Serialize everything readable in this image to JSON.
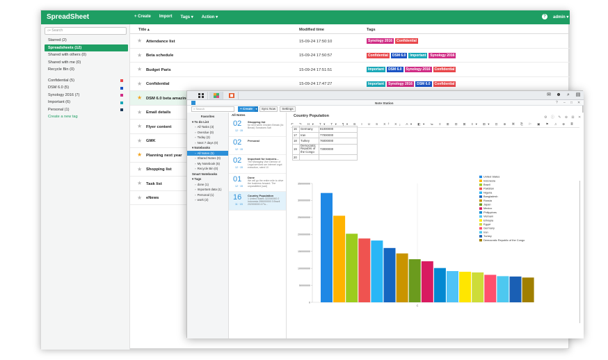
{
  "spreadsheet": {
    "logo": "SpreadSheet",
    "menu": [
      "+ Create",
      "Import",
      "Tags ▾",
      "Action ▾"
    ],
    "help": "?",
    "user": "admin ▾",
    "search_placeholder": "Search",
    "nav": [
      "Starred (2)",
      "Spreadsheets (12)",
      "Shared with others (0)",
      "Shared with me (0)",
      "Recycle Bin (0)"
    ],
    "tags": [
      {
        "label": "Confidential (5)",
        "color": "#e8474b"
      },
      {
        "label": "DSM 6.0 (5)",
        "color": "#1b53c4"
      },
      {
        "label": "Synology 2016 (7)",
        "color": "#d02c85"
      },
      {
        "label": "Important (6)",
        "color": "#1aa8b8"
      },
      {
        "label": "Personal (1)",
        "color": "#1e3a5a"
      }
    ],
    "create_tag": "Create a new tag",
    "columns": {
      "title": "Title ▴",
      "modified": "Modified time",
      "tags": "Tags"
    },
    "rows": [
      {
        "title": "Attendance list",
        "time": "15-09-24 17:50:10",
        "starred": false,
        "tags": [
          {
            "label": "Synology 2016",
            "color": "#d02c85"
          },
          {
            "label": "Confidential",
            "color": "#e8474b"
          }
        ]
      },
      {
        "title": "Beta schedule",
        "time": "15-09-24 17:50:57",
        "starred": false,
        "tags": [
          {
            "label": "Confidential",
            "color": "#e8474b"
          },
          {
            "label": "DSM 6.0",
            "color": "#1b53c4"
          },
          {
            "label": "Important",
            "color": "#1aa8b8"
          },
          {
            "label": "Synology 2016",
            "color": "#d02c85"
          }
        ]
      },
      {
        "title": "Budget Paris",
        "time": "15-09-24 17:51:51",
        "starred": false,
        "tags": [
          {
            "label": "Important",
            "color": "#1aa8b8"
          },
          {
            "label": "DSM 6.0",
            "color": "#1b53c4"
          },
          {
            "label": "Synology 2016",
            "color": "#d02c85"
          },
          {
            "label": "Confidential",
            "color": "#e8474b"
          }
        ]
      },
      {
        "title": "Confidential",
        "time": "15-09-24 17:47:27",
        "starred": false,
        "tags": [
          {
            "label": "Important",
            "color": "#1aa8b8"
          },
          {
            "label": "Synology 2016",
            "color": "#d02c85"
          },
          {
            "label": "DSM 6.0",
            "color": "#1b53c4"
          },
          {
            "label": "Confidential",
            "color": "#e8474b"
          }
        ]
      },
      {
        "title": "DSM 6.0 beta amazing",
        "time": "",
        "starred": true,
        "highlight": true,
        "tags": []
      },
      {
        "title": "Email details",
        "time": "",
        "starred": false,
        "tags": []
      },
      {
        "title": "Flyer content",
        "time": "",
        "starred": false,
        "tags": []
      },
      {
        "title": "GMK",
        "time": "",
        "starred": false,
        "tags": []
      },
      {
        "title": "Planning next year",
        "time": "",
        "starred": true,
        "tags": []
      },
      {
        "title": "Shopping list",
        "time": "",
        "starred": false,
        "tags": []
      },
      {
        "title": "Task list",
        "time": "",
        "starred": false,
        "tags": []
      },
      {
        "title": "eNews",
        "time": "",
        "starred": false,
        "tags": []
      }
    ]
  },
  "note": {
    "window_title": "Note Station",
    "search_placeholder": "Search",
    "create": "+ Create",
    "create_drop": "▾",
    "sync": "Sync Now",
    "settings": "Settings",
    "sidebar": [
      {
        "label": "Favorites",
        "kind": "center"
      },
      {
        "label": "▾ To do List",
        "kind": "head"
      },
      {
        "label": "All Tasks (3)",
        "kind": "item"
      },
      {
        "label": "Overdue (0)",
        "kind": "item"
      },
      {
        "label": "Today (2)",
        "kind": "item"
      },
      {
        "label": "Next 7 days (0)",
        "kind": "item"
      },
      {
        "label": "▾ Notebooks",
        "kind": "head"
      },
      {
        "label": "All Notes (5)",
        "kind": "active"
      },
      {
        "label": "Shared Notes (0)",
        "kind": "item"
      },
      {
        "label": "My Notebook (5)",
        "kind": "item"
      },
      {
        "label": "Recycle Bin (0)",
        "kind": "item"
      },
      {
        "label": "Smart Notebooks",
        "kind": "head"
      },
      {
        "label": "▾ Tags",
        "kind": "head"
      },
      {
        "label": "done (1)",
        "kind": "item"
      },
      {
        "label": "Important data (1)",
        "kind": "item"
      },
      {
        "label": "Personal (1)",
        "kind": "item"
      },
      {
        "label": "work (2)",
        "kind": "item"
      }
    ],
    "notes_header": "All Notes",
    "notes": [
      {
        "day": "02",
        "month": "12 · 15",
        "title": "Shopping list",
        "preview": "for next week Chicken Breast (4x Bread) Tomatoes Salt"
      },
      {
        "day": "02",
        "month": "12 · 15",
        "title": "Personal",
        "preview": ""
      },
      {
        "day": "02",
        "month": "12 · 15",
        "title": "Important for tomorro...",
        "preview": "The Managing Vice Director of Legal services ser internet crypt execution, rated 10"
      },
      {
        "day": "01",
        "month": "12 · 15",
        "title": "Done",
        "preview": "We will go the entire mile to drive the business forward. The unparalleled (sad)"
      },
      {
        "day": "16",
        "month": "11 · 15",
        "title": "Country Population",
        "preview": "1 United States 322000000 2 Indonesia 255000000 3 Brazil 202000000 4 Pa...",
        "active": true
      }
    ],
    "doc_title": "Country  Population",
    "doc_actions": "⚙ ⓘ ✎ ⊕ ⊞ ✕",
    "format_bar": "↶ ↷ H▾ T▾ T▾ ¶▾ B I U S X² X₂ A▾ ◧▾ ≔ ≡ ⊞ ⊟ ⊠ ≡▾ ⊞▾ ⊡ ⊗ ⌘ ⎘ ⚐ ▣ ⚑ ♫ ⊕ ≣",
    "table": [
      [
        "16",
        "Germany",
        "81000000"
      ],
      [
        "17",
        "Iran",
        "77000000"
      ],
      [
        "18",
        "Turkey",
        "76000000"
      ],
      [
        "19",
        "Democratic Republic of the Congo",
        "73000000"
      ],
      [
        "20",
        "",
        ""
      ]
    ]
  },
  "chart_data": {
    "type": "bar",
    "categories": [
      "United States",
      "Indonesia",
      "Brazil",
      "Pakistan",
      "Nigeria",
      "Bangladesh",
      "Russia",
      "Japan",
      "Mexico",
      "Philippines",
      "Vietnam",
      "Ethiopia",
      "Egypt",
      "Germany",
      "Iran",
      "Turkey",
      "Democratic Republic of the Congo"
    ],
    "values": [
      322000000,
      255000000,
      202000000,
      188000000,
      182000000,
      160000000,
      144000000,
      127000000,
      121000000,
      101000000,
      92000000,
      90000000,
      88000000,
      81000000,
      77000000,
      76000000,
      73000000
    ],
    "colors": [
      "#1e88e5",
      "#ffb300",
      "#9ccc1e",
      "#ef5350",
      "#29b6f6",
      "#1565c0",
      "#c99400",
      "#6b9b1e",
      "#d81b60",
      "#0288d1",
      "#4fc3f7",
      "#ffe600",
      "#cddc39",
      "#ff4f6d",
      "#4dc8f0",
      "#1a5fb4",
      "#a07f00"
    ],
    "ylim": [
      0,
      350000000
    ],
    "yticks": [
      "0",
      "50000000",
      "100000000",
      "150000000",
      "200000000",
      "250000000",
      "300000000",
      "350000000"
    ],
    "xtick": "C",
    "legend_position": "right"
  }
}
